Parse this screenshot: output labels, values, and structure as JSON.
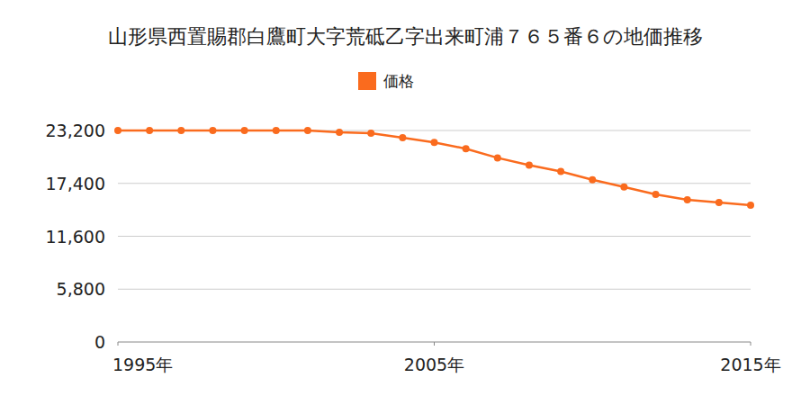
{
  "chart_data": {
    "type": "line",
    "title": "山形県西置賜郡白鷹町大字荒砥乙字出来町浦７６５番６の地価推移",
    "x": [
      1995,
      1996,
      1997,
      1998,
      1999,
      2000,
      2001,
      2002,
      2003,
      2004,
      2005,
      2006,
      2007,
      2008,
      2009,
      2010,
      2011,
      2012,
      2013,
      2014,
      2015
    ],
    "series": [
      {
        "name": "価格",
        "color": "#fa6b1e",
        "marker": "circle",
        "values": [
          23200,
          23200,
          23200,
          23200,
          23200,
          23200,
          23200,
          23000,
          22900,
          22400,
          21900,
          21200,
          20200,
          19400,
          18700,
          17800,
          17000,
          16200,
          15600,
          15300,
          15000
        ]
      }
    ],
    "xlim": [
      1995,
      2015
    ],
    "xticks": [
      {
        "value": 1995,
        "label": "1995年"
      },
      {
        "value": 2005,
        "label": "2005年"
      },
      {
        "value": 2015,
        "label": "2015年"
      }
    ],
    "ylim": [
      0,
      23200
    ],
    "yticks": [
      0,
      {
        "value": 5800,
        "label": "5,800"
      },
      {
        "value": 11600,
        "label": "11,600"
      },
      {
        "value": 17400,
        "label": "17,400"
      },
      {
        "value": 23200,
        "label": "23,200"
      }
    ],
    "grid": true,
    "legend": "top"
  }
}
